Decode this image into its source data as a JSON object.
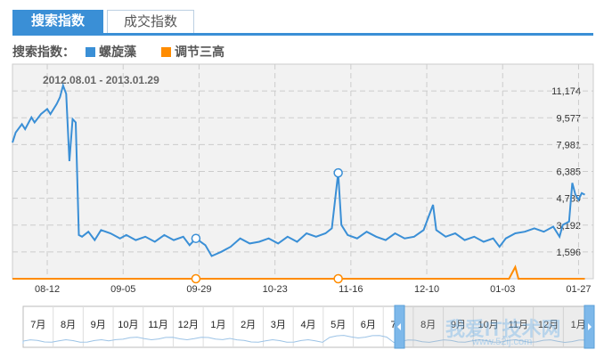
{
  "tabs": [
    {
      "label": "搜索指数",
      "active": true
    },
    {
      "label": "成交指数",
      "active": false
    }
  ],
  "legend": {
    "prefix": "搜索指数：",
    "items": [
      {
        "name": "螺旋藻",
        "color": "#3a8fd6"
      },
      {
        "name": "调节三高",
        "color": "#ff8c00"
      }
    ]
  },
  "watermark": {
    "text": "我爱IT技术网",
    "url": "www.52ij.com"
  },
  "chart_data": {
    "type": "line",
    "date_range": "2012.08.01 - 2013.01.29",
    "x_start": "2012-08-01",
    "x_end": "2013-01-29",
    "ylim": [
      0,
      12770
    ],
    "y_ticks": [
      "1,596",
      "3,192",
      "4,789",
      "6,385",
      "7,981",
      "9,577",
      "11,174"
    ],
    "y_tick_values": [
      1596,
      3192,
      4789,
      6385,
      7981,
      9577,
      11174
    ],
    "x_ticks": [
      "08-12",
      "09-05",
      "09-29",
      "10-23",
      "11-16",
      "12-10",
      "01-03",
      "01-27"
    ],
    "grid": true,
    "series": [
      {
        "name": "螺旋藻",
        "color": "#3a8fd6",
        "points": [
          [
            "08-01",
            8100
          ],
          [
            "08-02",
            8700
          ],
          [
            "08-04",
            9200
          ],
          [
            "08-05",
            8900
          ],
          [
            "08-07",
            9600
          ],
          [
            "08-08",
            9300
          ],
          [
            "08-10",
            9800
          ],
          [
            "08-12",
            10100
          ],
          [
            "08-13",
            9800
          ],
          [
            "08-15",
            10400
          ],
          [
            "08-16",
            10800
          ],
          [
            "08-17",
            11500
          ],
          [
            "08-18",
            11000
          ],
          [
            "08-19",
            7000
          ],
          [
            "08-20",
            9500
          ],
          [
            "08-21",
            9300
          ],
          [
            "08-22",
            2600
          ],
          [
            "08-23",
            2500
          ],
          [
            "08-25",
            2800
          ],
          [
            "08-27",
            2300
          ],
          [
            "08-29",
            2900
          ],
          [
            "09-01",
            2700
          ],
          [
            "09-04",
            2400
          ],
          [
            "09-06",
            2600
          ],
          [
            "09-09",
            2300
          ],
          [
            "09-12",
            2500
          ],
          [
            "09-15",
            2200
          ],
          [
            "09-18",
            2600
          ],
          [
            "09-21",
            2300
          ],
          [
            "09-24",
            2500
          ],
          [
            "09-26",
            2000
          ],
          [
            "09-28",
            2400
          ],
          [
            "10-01",
            2000
          ],
          [
            "10-03",
            1350
          ],
          [
            "10-06",
            1600
          ],
          [
            "10-09",
            1900
          ],
          [
            "10-12",
            2400
          ],
          [
            "10-15",
            2100
          ],
          [
            "10-18",
            2200
          ],
          [
            "10-21",
            2400
          ],
          [
            "10-24",
            2100
          ],
          [
            "10-27",
            2500
          ],
          [
            "10-30",
            2200
          ],
          [
            "11-02",
            2700
          ],
          [
            "11-05",
            2500
          ],
          [
            "11-08",
            2700
          ],
          [
            "11-10",
            3000
          ],
          [
            "11-12",
            6300
          ],
          [
            "11-13",
            3200
          ],
          [
            "11-15",
            2600
          ],
          [
            "11-18",
            2400
          ],
          [
            "11-21",
            2800
          ],
          [
            "11-24",
            2500
          ],
          [
            "11-27",
            2300
          ],
          [
            "11-30",
            2700
          ],
          [
            "12-03",
            2400
          ],
          [
            "12-06",
            2500
          ],
          [
            "12-09",
            2900
          ],
          [
            "12-12",
            4400
          ],
          [
            "12-13",
            2900
          ],
          [
            "12-16",
            2500
          ],
          [
            "12-19",
            2700
          ],
          [
            "12-22",
            2300
          ],
          [
            "12-25",
            2500
          ],
          [
            "12-28",
            2200
          ],
          [
            "12-31",
            2400
          ],
          [
            "01-02",
            1900
          ],
          [
            "01-04",
            2400
          ],
          [
            "01-07",
            2700
          ],
          [
            "01-10",
            2800
          ],
          [
            "01-13",
            3000
          ],
          [
            "01-16",
            2800
          ],
          [
            "01-19",
            3100
          ],
          [
            "01-21",
            2500
          ],
          [
            "01-22",
            3200
          ],
          [
            "01-24",
            3400
          ],
          [
            "01-25",
            5700
          ],
          [
            "01-26",
            5000
          ],
          [
            "01-27",
            4700
          ],
          [
            "01-28",
            5100
          ],
          [
            "01-29",
            5000
          ]
        ]
      },
      {
        "name": "调节三高",
        "color": "#ff8c00",
        "points": [
          [
            "08-01",
            0
          ],
          [
            "01-05",
            0
          ],
          [
            "01-06",
            350
          ],
          [
            "01-07",
            700
          ],
          [
            "01-08",
            0
          ],
          [
            "01-29",
            0
          ]
        ]
      }
    ],
    "markers": [
      "09-28",
      "11-12"
    ]
  },
  "navigator": {
    "months": [
      "7月",
      "8月",
      "9月",
      "10月",
      "11月",
      "12月",
      "1月",
      "2月",
      "3月",
      "4月",
      "5月",
      "6月",
      "7月",
      "8月",
      "9月",
      "10月",
      "11月",
      "12月",
      "1月"
    ],
    "selected_range": "2012.08.01 - 2013.01.29"
  }
}
